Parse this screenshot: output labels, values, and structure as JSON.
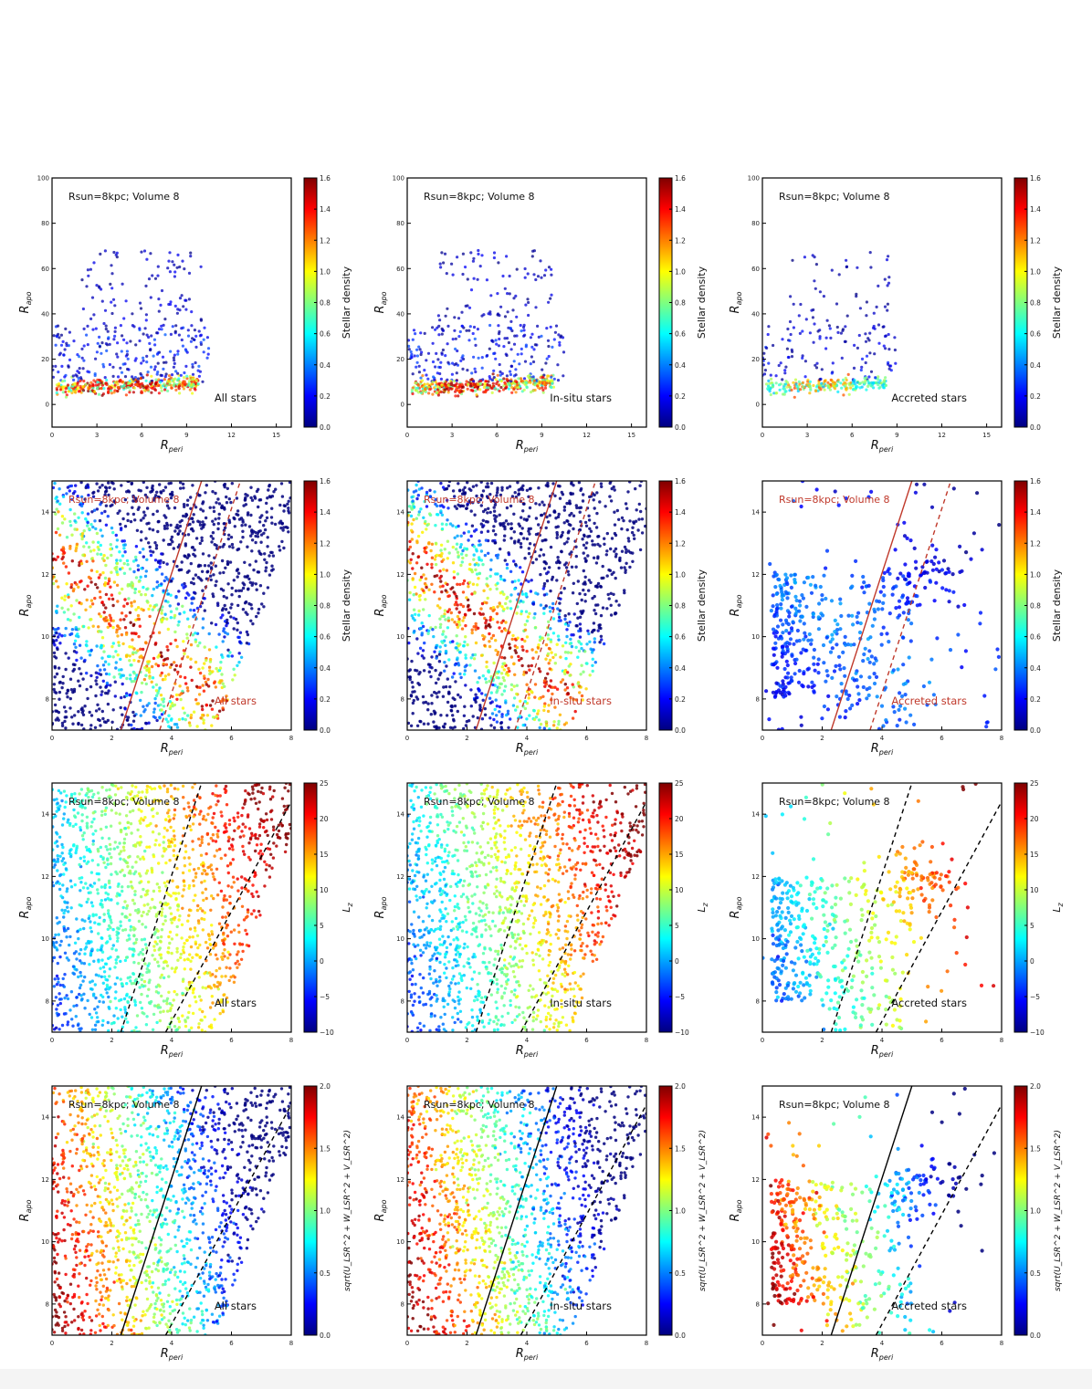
{
  "colors": {
    "jet": [
      "#00007f",
      "#0000ff",
      "#007fff",
      "#00ffff",
      "#7fff7f",
      "#ffff00",
      "#ff7f00",
      "#ff0000",
      "#7f0000"
    ],
    "line_red": "#c0392b",
    "line_black": "#000000",
    "label_red": "#c0392b",
    "label_black": "#111111"
  },
  "chart_data": [
    {
      "id": "r1c1",
      "row": 0,
      "col": 0,
      "type": "scatter",
      "color_mode": "density",
      "title": "Rsun=8kpc; Volume 8",
      "label": "All stars",
      "xlabel": "R_peri",
      "ylabel": "R_apo",
      "colorbar_label": "Stellar density",
      "xlim": [
        0,
        16
      ],
      "ylim": [
        -10,
        100
      ],
      "xticks": [
        0,
        3,
        6,
        9,
        12,
        15
      ],
      "yticks": [
        0,
        20,
        40,
        60,
        80,
        100
      ],
      "cticks": [
        0.0,
        0.2,
        0.4,
        0.6,
        0.8,
        1.0,
        1.2,
        1.4,
        1.6
      ],
      "clim": [
        0,
        1.6
      ],
      "sample": "all",
      "lines": []
    },
    {
      "id": "r1c2",
      "row": 0,
      "col": 1,
      "type": "scatter",
      "color_mode": "density",
      "title": "Rsun=8kpc; Volume 8",
      "label": "In-situ stars",
      "xlabel": "R_peri",
      "ylabel": "R_apo",
      "colorbar_label": "Stellar density",
      "xlim": [
        0,
        16
      ],
      "ylim": [
        -10,
        100
      ],
      "xticks": [
        0,
        3,
        6,
        9,
        12,
        15
      ],
      "yticks": [
        0,
        20,
        40,
        60,
        80,
        100
      ],
      "cticks": [
        0.0,
        0.2,
        0.4,
        0.6,
        0.8,
        1.0,
        1.2,
        1.4,
        1.6
      ],
      "clim": [
        0,
        1.6
      ],
      "sample": "insitu",
      "lines": []
    },
    {
      "id": "r1c3",
      "row": 0,
      "col": 2,
      "type": "scatter",
      "color_mode": "density",
      "title": "Rsun=8kpc; Volume 8",
      "label": "Accreted stars",
      "xlabel": "R_peri",
      "ylabel": "R_apo",
      "colorbar_label": "Stellar density",
      "xlim": [
        0,
        16
      ],
      "ylim": [
        -10,
        100
      ],
      "xticks": [
        0,
        3,
        6,
        9,
        12,
        15
      ],
      "yticks": [
        0,
        20,
        40,
        60,
        80,
        100
      ],
      "cticks": [
        0.0,
        0.2,
        0.4,
        0.6,
        0.8,
        1.0,
        1.2,
        1.4,
        1.6
      ],
      "clim": [
        0,
        1.6
      ],
      "sample": "accreted",
      "lines": []
    },
    {
      "id": "r2c1",
      "row": 1,
      "col": 0,
      "type": "scatter",
      "color_mode": "density",
      "title": "Rsun=8kpc; Volume 8",
      "label": "All stars",
      "label_color": "red",
      "xlabel": "R_peri",
      "ylabel": "R_apo",
      "colorbar_label": "Stellar density",
      "xlim": [
        0,
        8
      ],
      "ylim": [
        7,
        15
      ],
      "xticks": [
        0,
        2,
        4,
        6,
        8
      ],
      "yticks": [
        8,
        10,
        12,
        14
      ],
      "cticks": [
        0.0,
        0.2,
        0.4,
        0.6,
        0.8,
        1.0,
        1.2,
        1.4,
        1.6
      ],
      "clim": [
        0,
        1.6
      ],
      "sample": "all_zoom",
      "lines": [
        {
          "x": [
            2.3,
            5.0
          ],
          "y": [
            7,
            15
          ],
          "color": "red",
          "style": "solid"
        },
        {
          "x": [
            3.6,
            6.3
          ],
          "y": [
            7,
            15
          ],
          "color": "red",
          "style": "dashed"
        }
      ]
    },
    {
      "id": "r2c2",
      "row": 1,
      "col": 1,
      "type": "scatter",
      "color_mode": "density",
      "title": "Rsun=8kpc; Volume 8",
      "label": "In-situ stars",
      "label_color": "red",
      "xlabel": "R_peri",
      "ylabel": "R_apo",
      "colorbar_label": "Stellar density",
      "xlim": [
        0,
        8
      ],
      "ylim": [
        7,
        15
      ],
      "xticks": [
        0,
        2,
        4,
        6,
        8
      ],
      "yticks": [
        8,
        10,
        12,
        14
      ],
      "cticks": [
        0.0,
        0.2,
        0.4,
        0.6,
        0.8,
        1.0,
        1.2,
        1.4,
        1.6
      ],
      "clim": [
        0,
        1.6
      ],
      "sample": "insitu_zoom",
      "lines": [
        {
          "x": [
            2.3,
            5.0
          ],
          "y": [
            7,
            15
          ],
          "color": "red",
          "style": "solid"
        },
        {
          "x": [
            3.6,
            6.3
          ],
          "y": [
            7,
            15
          ],
          "color": "red",
          "style": "dashed"
        }
      ]
    },
    {
      "id": "r2c3",
      "row": 1,
      "col": 2,
      "type": "scatter",
      "color_mode": "density",
      "title": "Rsun=8kpc; Volume 8",
      "label": "Accreted stars",
      "label_color": "red",
      "xlabel": "R_peri",
      "ylabel": "R_apo",
      "colorbar_label": "Stellar density",
      "xlim": [
        0,
        8
      ],
      "ylim": [
        7,
        15
      ],
      "xticks": [
        0,
        2,
        4,
        6,
        8
      ],
      "yticks": [
        8,
        10,
        12,
        14
      ],
      "cticks": [
        0.0,
        0.2,
        0.4,
        0.6,
        0.8,
        1.0,
        1.2,
        1.4,
        1.6
      ],
      "clim": [
        0,
        1.6
      ],
      "sample": "accreted_zoom",
      "lines": [
        {
          "x": [
            2.3,
            5.0
          ],
          "y": [
            7,
            15
          ],
          "color": "red",
          "style": "solid"
        },
        {
          "x": [
            3.6,
            6.3
          ],
          "y": [
            7,
            15
          ],
          "color": "red",
          "style": "dashed"
        }
      ]
    },
    {
      "id": "r3c1",
      "row": 2,
      "col": 0,
      "type": "scatter",
      "color_mode": "Lz",
      "title": "Rsun=8kpc; Volume 8",
      "label": "All stars",
      "xlabel": "R_peri",
      "ylabel": "R_apo",
      "colorbar_label": "L_z",
      "xlim": [
        0,
        8
      ],
      "ylim": [
        7,
        15
      ],
      "xticks": [
        0,
        2,
        4,
        6,
        8
      ],
      "yticks": [
        8,
        10,
        12,
        14
      ],
      "cticks": [
        -10,
        -5,
        0,
        5,
        10,
        15,
        20,
        25
      ],
      "clim": [
        -10,
        25
      ],
      "sample": "all_zoom",
      "lines": [
        {
          "x": [
            2.3,
            5.0
          ],
          "y": [
            7,
            15
          ],
          "color": "black",
          "style": "dashed"
        },
        {
          "x": [
            3.8,
            8.0
          ],
          "y": [
            7,
            14.4
          ],
          "color": "black",
          "style": "dashed"
        }
      ]
    },
    {
      "id": "r3c2",
      "row": 2,
      "col": 1,
      "type": "scatter",
      "color_mode": "Lz",
      "title": "Rsun=8kpc; Volume 8",
      "label": "In-situ stars",
      "xlabel": "R_peri",
      "ylabel": "R_apo",
      "colorbar_label": "L_z",
      "xlim": [
        0,
        8
      ],
      "ylim": [
        7,
        15
      ],
      "xticks": [
        0,
        2,
        4,
        6,
        8
      ],
      "yticks": [
        8,
        10,
        12,
        14
      ],
      "cticks": [
        -10,
        -5,
        0,
        5,
        10,
        15,
        20,
        25
      ],
      "clim": [
        -10,
        25
      ],
      "sample": "insitu_zoom",
      "lines": [
        {
          "x": [
            2.3,
            5.0
          ],
          "y": [
            7,
            15
          ],
          "color": "black",
          "style": "dashed"
        },
        {
          "x": [
            3.8,
            8.0
          ],
          "y": [
            7,
            14.4
          ],
          "color": "black",
          "style": "dashed"
        }
      ]
    },
    {
      "id": "r3c3",
      "row": 2,
      "col": 2,
      "type": "scatter",
      "color_mode": "Lz",
      "title": "Rsun=8kpc; Volume 8",
      "label": "Accreted stars",
      "xlabel": "R_peri",
      "ylabel": "R_apo",
      "colorbar_label": "L_z",
      "xlim": [
        0,
        8
      ],
      "ylim": [
        7,
        15
      ],
      "xticks": [
        0,
        2,
        4,
        6,
        8
      ],
      "yticks": [
        8,
        10,
        12,
        14
      ],
      "cticks": [
        -10,
        -5,
        0,
        5,
        10,
        15,
        20,
        25
      ],
      "clim": [
        -10,
        25
      ],
      "sample": "accreted_zoom",
      "lines": [
        {
          "x": [
            2.3,
            5.0
          ],
          "y": [
            7,
            15
          ],
          "color": "black",
          "style": "dashed"
        },
        {
          "x": [
            3.8,
            8.0
          ],
          "y": [
            7,
            14.4
          ],
          "color": "black",
          "style": "dashed"
        }
      ]
    },
    {
      "id": "r4c1",
      "row": 3,
      "col": 0,
      "type": "scatter",
      "color_mode": "vel",
      "title": "Rsun=8kpc; Volume 8",
      "label": "All stars",
      "xlabel": "R_peri",
      "ylabel": "R_apo",
      "colorbar_label": "sqrt(U_LSR^2 + W_LSR^2 + V_LSR^2)",
      "xlim": [
        0,
        8
      ],
      "ylim": [
        7,
        15
      ],
      "xticks": [
        0,
        2,
        4,
        6,
        8
      ],
      "yticks": [
        8,
        10,
        12,
        14
      ],
      "cticks": [
        0.0,
        0.5,
        1.0,
        1.5,
        2.0
      ],
      "clim": [
        0,
        2
      ],
      "sample": "all_zoom",
      "lines": [
        {
          "x": [
            2.3,
            5.0
          ],
          "y": [
            7,
            15
          ],
          "color": "black",
          "style": "solid"
        },
        {
          "x": [
            3.8,
            8.0
          ],
          "y": [
            7,
            14.4
          ],
          "color": "black",
          "style": "dashed"
        }
      ]
    },
    {
      "id": "r4c2",
      "row": 3,
      "col": 1,
      "type": "scatter",
      "color_mode": "vel",
      "title": "Rsun=8kpc; Volume 8",
      "label": "In-situ stars",
      "xlabel": "R_peri",
      "ylabel": "R_apo",
      "colorbar_label": "sqrt(U_LSR^2 + W_LSR^2 + V_LSR^2)",
      "xlim": [
        0,
        8
      ],
      "ylim": [
        7,
        15
      ],
      "xticks": [
        0,
        2,
        4,
        6,
        8
      ],
      "yticks": [
        8,
        10,
        12,
        14
      ],
      "cticks": [
        0.0,
        0.5,
        1.0,
        1.5,
        2.0
      ],
      "clim": [
        0,
        2
      ],
      "sample": "insitu_zoom",
      "lines": [
        {
          "x": [
            2.3,
            5.0
          ],
          "y": [
            7,
            15
          ],
          "color": "black",
          "style": "solid"
        },
        {
          "x": [
            3.8,
            8.0
          ],
          "y": [
            7,
            14.4
          ],
          "color": "black",
          "style": "dashed"
        }
      ]
    },
    {
      "id": "r4c3",
      "row": 3,
      "col": 2,
      "type": "scatter",
      "color_mode": "vel",
      "title": "Rsun=8kpc; Volume 8",
      "label": "Accreted stars",
      "xlabel": "R_peri",
      "ylabel": "R_apo",
      "colorbar_label": "sqrt(U_LSR^2 + W_LSR^2 + V_LSR^2)",
      "xlim": [
        0,
        8
      ],
      "ylim": [
        7,
        15
      ],
      "xticks": [
        0,
        2,
        4,
        6,
        8
      ],
      "yticks": [
        8,
        10,
        12,
        14
      ],
      "cticks": [
        0.0,
        0.5,
        1.0,
        1.5,
        2.0
      ],
      "clim": [
        0,
        2
      ],
      "sample": "accreted_zoom",
      "lines": [
        {
          "x": [
            2.3,
            5.0
          ],
          "y": [
            7,
            15
          ],
          "color": "black",
          "style": "solid"
        },
        {
          "x": [
            3.8,
            8.0
          ],
          "y": [
            7,
            14.4
          ],
          "color": "black",
          "style": "dashed"
        }
      ]
    }
  ]
}
